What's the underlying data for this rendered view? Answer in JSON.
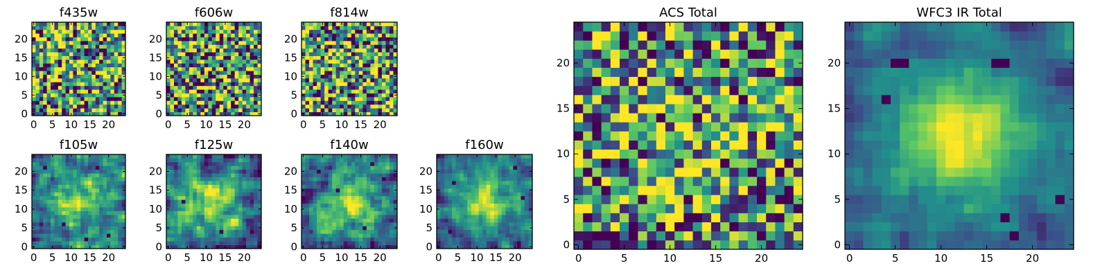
{
  "figure": {
    "background": "#ffffff",
    "colormap": [
      "#440154",
      "#3b528b",
      "#21918c",
      "#5ec962",
      "#fde725"
    ]
  },
  "chart_data": [
    {
      "type": "heatmap",
      "title": "f435w",
      "grid_size": 25,
      "x_ticks": [
        0,
        5,
        10,
        15,
        20
      ],
      "y_ticks": [
        0,
        5,
        10,
        15,
        20
      ],
      "xlim": [
        -0.5,
        24.5
      ],
      "ylim": [
        -0.5,
        24.5
      ],
      "pattern": "noise",
      "seed": 11,
      "peak": 0.0,
      "noise": 1.0,
      "dark_spots": []
    },
    {
      "type": "heatmap",
      "title": "f606w",
      "grid_size": 25,
      "x_ticks": [
        0,
        5,
        10,
        15,
        20
      ],
      "y_ticks": [
        0,
        5,
        10,
        15,
        20
      ],
      "xlim": [
        -0.5,
        24.5
      ],
      "ylim": [
        -0.5,
        24.5
      ],
      "pattern": "noise",
      "seed": 23,
      "peak": 0.0,
      "noise": 1.0,
      "dark_spots": []
    },
    {
      "type": "heatmap",
      "title": "f814w",
      "grid_size": 25,
      "x_ticks": [
        0,
        5,
        10,
        15,
        20
      ],
      "y_ticks": [
        0,
        5,
        10,
        15,
        20
      ],
      "xlim": [
        -0.5,
        24.5
      ],
      "ylim": [
        -0.5,
        24.5
      ],
      "pattern": "noise",
      "seed": 37,
      "peak": 0.05,
      "noise": 1.0,
      "dark_spots": []
    },
    {
      "type": "heatmap",
      "title": "f105w",
      "grid_size": 25,
      "x_ticks": [
        0,
        5,
        10,
        15,
        20
      ],
      "y_ticks": [
        0,
        5,
        10,
        15,
        20
      ],
      "xlim": [
        -0.5,
        24.5
      ],
      "ylim": [
        -0.5,
        24.5
      ],
      "pattern": "smooth",
      "seed": 41,
      "peak": 0.45,
      "noise": 0.7,
      "dark_spots": [
        [
          3,
          21
        ],
        [
          17,
          21
        ],
        [
          8,
          6
        ],
        [
          20,
          3
        ],
        [
          14,
          2
        ]
      ]
    },
    {
      "type": "heatmap",
      "title": "f125w",
      "grid_size": 25,
      "x_ticks": [
        0,
        5,
        10,
        15,
        20
      ],
      "y_ticks": [
        0,
        5,
        10,
        15,
        20
      ],
      "xlim": [
        -0.5,
        24.5
      ],
      "ylim": [
        -0.5,
        24.5
      ],
      "pattern": "smooth",
      "seed": 53,
      "peak": 0.45,
      "noise": 0.7,
      "dark_spots": [
        [
          14,
          4
        ],
        [
          13,
          0
        ],
        [
          22,
          4
        ],
        [
          4,
          12
        ]
      ]
    },
    {
      "type": "heatmap",
      "title": "f140w",
      "grid_size": 25,
      "x_ticks": [
        0,
        5,
        10,
        15,
        20
      ],
      "y_ticks": [
        0,
        5,
        10,
        15,
        20
      ],
      "xlim": [
        -0.5,
        24.5
      ],
      "ylim": [
        -0.5,
        24.5
      ],
      "pattern": "smooth",
      "seed": 67,
      "peak": 0.5,
      "noise": 0.7,
      "dark_spots": [
        [
          9,
          15
        ],
        [
          18,
          22
        ],
        [
          21,
          18
        ],
        [
          16,
          5
        ],
        [
          4,
          20
        ]
      ]
    },
    {
      "type": "heatmap",
      "title": "f160w",
      "grid_size": 25,
      "x_ticks": [
        0,
        5,
        10,
        15,
        20
      ],
      "y_ticks": [
        0,
        5,
        10,
        15,
        20
      ],
      "xlim": [
        -0.5,
        24.5
      ],
      "ylim": [
        -0.5,
        24.5
      ],
      "pattern": "smooth",
      "seed": 79,
      "peak": 0.6,
      "noise": 0.55,
      "dark_spots": [
        [
          4,
          17
        ],
        [
          20,
          21
        ],
        [
          22,
          13
        ],
        [
          3,
          4
        ]
      ]
    },
    {
      "type": "heatmap",
      "title": "ACS Total",
      "grid_size": 25,
      "x_ticks": [
        0,
        5,
        10,
        15,
        20
      ],
      "y_ticks": [
        0,
        5,
        10,
        15,
        20
      ],
      "xlim": [
        -0.5,
        24.5
      ],
      "ylim": [
        -0.5,
        24.5
      ],
      "pattern": "noise",
      "seed": 97,
      "peak": 0.15,
      "noise": 0.9,
      "dark_spots": [
        [
          2,
          18
        ],
        [
          16,
          20
        ],
        [
          13,
          14
        ],
        [
          9,
          14
        ],
        [
          21,
          11
        ],
        [
          16,
          9
        ],
        [
          19,
          8
        ],
        [
          20,
          5
        ],
        [
          23,
          6
        ],
        [
          8,
          0
        ]
      ]
    },
    {
      "type": "heatmap",
      "title": "WFC3 IR Total",
      "grid_size": 25,
      "x_ticks": [
        0,
        5,
        10,
        15,
        20
      ],
      "y_ticks": [
        0,
        5,
        10,
        15,
        20
      ],
      "xlim": [
        -0.5,
        24.5
      ],
      "ylim": [
        -0.5,
        24.5
      ],
      "pattern": "smooth",
      "seed": 113,
      "peak": 0.65,
      "noise": 0.35,
      "dark_spots": [
        [
          5,
          20
        ],
        [
          6,
          20
        ],
        [
          16,
          20
        ],
        [
          17,
          20
        ],
        [
          4,
          16
        ],
        [
          23,
          5
        ],
        [
          18,
          1
        ],
        [
          17,
          3
        ]
      ]
    }
  ]
}
